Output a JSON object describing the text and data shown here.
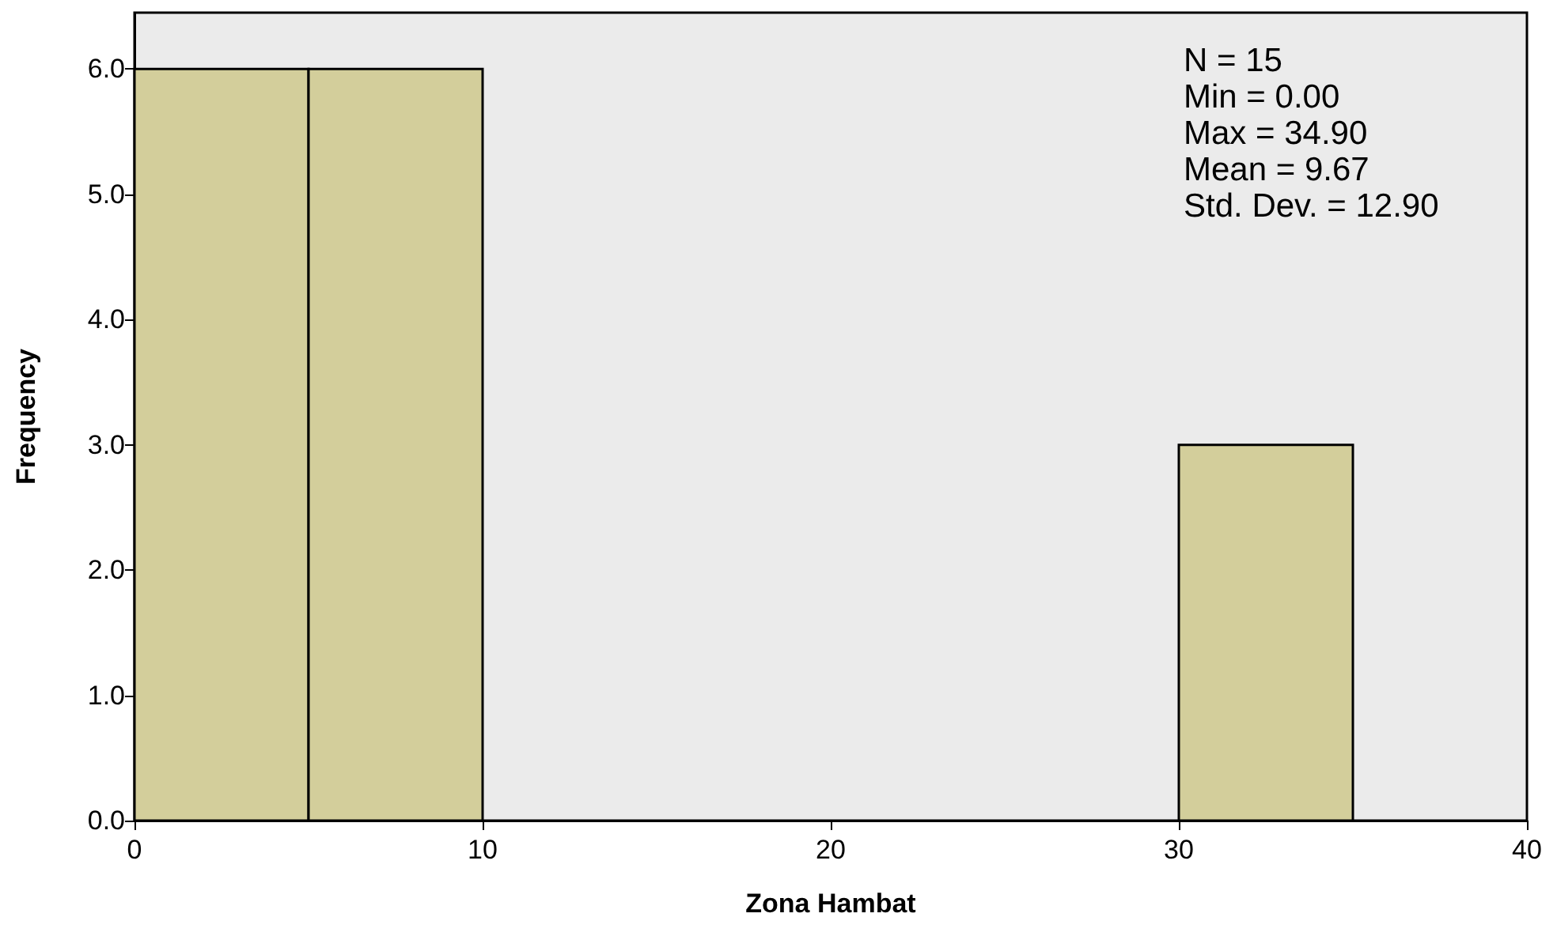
{
  "chart_data": {
    "type": "histogram",
    "xlabel": "Zona Hambat",
    "ylabel": "Frequency",
    "bins": [
      0,
      5,
      10,
      15,
      20,
      25,
      30,
      35
    ],
    "values": [
      6,
      6,
      0,
      0,
      0,
      0,
      3
    ],
    "color": "#d3ce9b",
    "xlim": [
      0,
      40
    ],
    "xticks": [
      0,
      10,
      20,
      30,
      40
    ],
    "ylim": [
      0,
      6.45
    ],
    "yticks": [
      {
        "value": 0,
        "label": "0.0"
      },
      {
        "value": 1,
        "label": "1.0"
      },
      {
        "value": 2,
        "label": "2.0"
      },
      {
        "value": 3,
        "label": "3.0"
      },
      {
        "value": 4,
        "label": "4.0"
      },
      {
        "value": 5,
        "label": "5.0"
      },
      {
        "value": 6,
        "label": "6.0"
      }
    ],
    "annotations": [
      "N = 15",
      "Min = 0.00",
      "Max = 34.90",
      "Mean = 9.67",
      "Std. Dev. = 12.90"
    ]
  }
}
